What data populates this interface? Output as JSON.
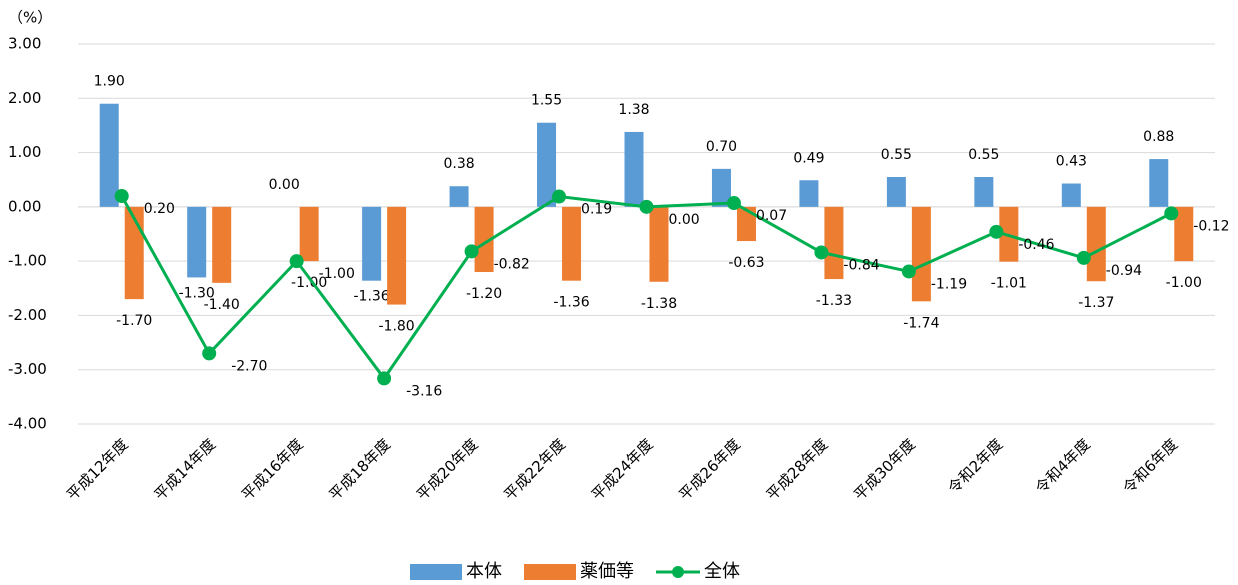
{
  "chart_data": {
    "type": "bar",
    "unit_label": "（%）",
    "categories": [
      "平成12年度",
      "平成14年度",
      "平成16年度",
      "平成18年度",
      "平成20年度",
      "平成22年度",
      "平成24年度",
      "平成26年度",
      "平成28年度",
      "平成30年度",
      "令和2年度",
      "令和4年度",
      "令和6年度"
    ],
    "series": [
      {
        "name": "本体",
        "type": "bar",
        "color": "#5b9bd5",
        "values": [
          1.9,
          -1.3,
          0,
          -1.36,
          0.38,
          1.55,
          1.38,
          0.7,
          0.49,
          0.55,
          0.55,
          0.43,
          0.88
        ],
        "value_labels": [
          "1.90",
          "-1.30",
          "0.00",
          "-1.36",
          "0.38",
          "1.55",
          "1.38",
          "0.70",
          "0.49",
          "0.55",
          "0.55",
          "0.43",
          "0.88"
        ]
      },
      {
        "name": "薬価等",
        "type": "bar",
        "color": "#ed7d31",
        "values": [
          -1.7,
          -1.4,
          -1,
          -1.8,
          -1.2,
          -1.36,
          -1.38,
          -0.63,
          -1.33,
          -1.74,
          -1.01,
          -1.37,
          -1
        ],
        "value_labels": [
          "-1.70",
          "-1.40",
          "-1.00",
          "-1.80",
          "-1.20",
          "-1.36",
          "-1.38",
          "-0.63",
          "-1.33",
          "-1.74",
          "-1.01",
          "-1.37",
          "-1.00"
        ]
      },
      {
        "name": "全体",
        "type": "line",
        "color": "#00b050",
        "values": [
          0.2,
          -2.7,
          -1,
          -3.16,
          -0.82,
          0.19,
          0,
          0.07,
          -0.84,
          -1.19,
          -0.46,
          -0.94,
          -0.12
        ],
        "value_labels": [
          "0.20",
          "-2.70",
          "-1.00",
          "-3.16",
          "-0.82",
          "0.19",
          "0.00",
          "0.07",
          "-0.84",
          "-1.19",
          "-0.46",
          "-0.94",
          "-0.12"
        ]
      }
    ],
    "ylim": [
      -4,
      3
    ],
    "yticks": [
      {
        "value": -4,
        "label": "-4.00"
      },
      {
        "value": -3,
        "label": "-3.00"
      },
      {
        "value": -2,
        "label": "-2.00"
      },
      {
        "value": -1,
        "label": "-1.00"
      },
      {
        "value": 0,
        "label": "0.00"
      },
      {
        "value": 1,
        "label": "1.00"
      },
      {
        "value": 2,
        "label": "2.00"
      },
      {
        "value": 3,
        "label": "3.00"
      }
    ],
    "grid": true,
    "legend": "bottom"
  }
}
